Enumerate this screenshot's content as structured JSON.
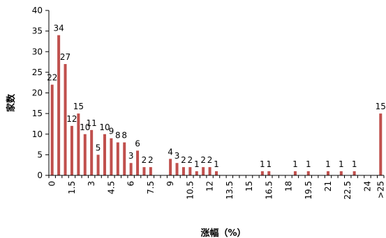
{
  "chart_data": {
    "type": "bar",
    "title": "",
    "xlabel": "涨幅（%）",
    "ylabel": "家数",
    "ylim": [
      0,
      40
    ],
    "yticks": [
      0,
      5,
      10,
      15,
      20,
      25,
      30,
      35,
      40
    ],
    "bar_color": "#c0504d",
    "grid": false,
    "categories": [
      "0",
      "0.5",
      "1",
      "1.5",
      "2",
      "2.5",
      "3",
      "3.5",
      "4",
      "4.5",
      "5",
      "5.5",
      "6",
      "6.5",
      "7",
      "7.5",
      "8",
      "8.5",
      "9",
      "9.5",
      "10",
      "10.5",
      "11",
      "11.5",
      "12",
      "12.5",
      "13",
      "13.5",
      "14",
      "14.5",
      "15",
      "15.5",
      "16",
      "16.5",
      "17",
      "17.5",
      "18",
      "18.5",
      "19",
      "19.5",
      "20",
      "20.5",
      "21",
      "21.5",
      "22",
      "22.5",
      "23",
      "23.5",
      "24",
      "24.5",
      ">25"
    ],
    "x_tick_labels": [
      "0",
      "1.5",
      "3",
      "4.5",
      "6",
      "7.5",
      "9",
      "10.5",
      "12",
      "13.5",
      "15",
      "16.5",
      "18",
      "19.5",
      "21",
      "22.5",
      "24",
      ">25"
    ],
    "values": [
      22,
      34,
      27,
      12,
      15,
      10,
      11,
      5,
      10,
      9,
      8,
      8,
      3,
      6,
      2,
      2,
      0,
      0,
      4,
      3,
      2,
      2,
      1,
      2,
      2,
      1,
      0,
      0,
      0,
      0,
      0,
      0,
      1,
      1,
      0,
      0,
      0,
      1,
      0,
      1,
      0,
      0,
      1,
      0,
      1,
      0,
      1,
      0,
      0,
      0,
      15
    ],
    "data_labels": [
      "22",
      "34",
      "27",
      "12",
      "15",
      "10",
      "11",
      "5",
      "10",
      "9",
      "8",
      "8",
      "3",
      "6",
      "2",
      "2",
      "",
      "",
      "4",
      "3",
      "2",
      "2",
      "1",
      "2",
      "2",
      "1",
      "",
      "",
      "",
      "",
      "",
      "",
      "1",
      "1",
      "",
      "",
      "",
      "1",
      "",
      "1",
      "",
      "",
      "1",
      "",
      "1",
      "",
      "1",
      "",
      "",
      "",
      "15"
    ]
  }
}
